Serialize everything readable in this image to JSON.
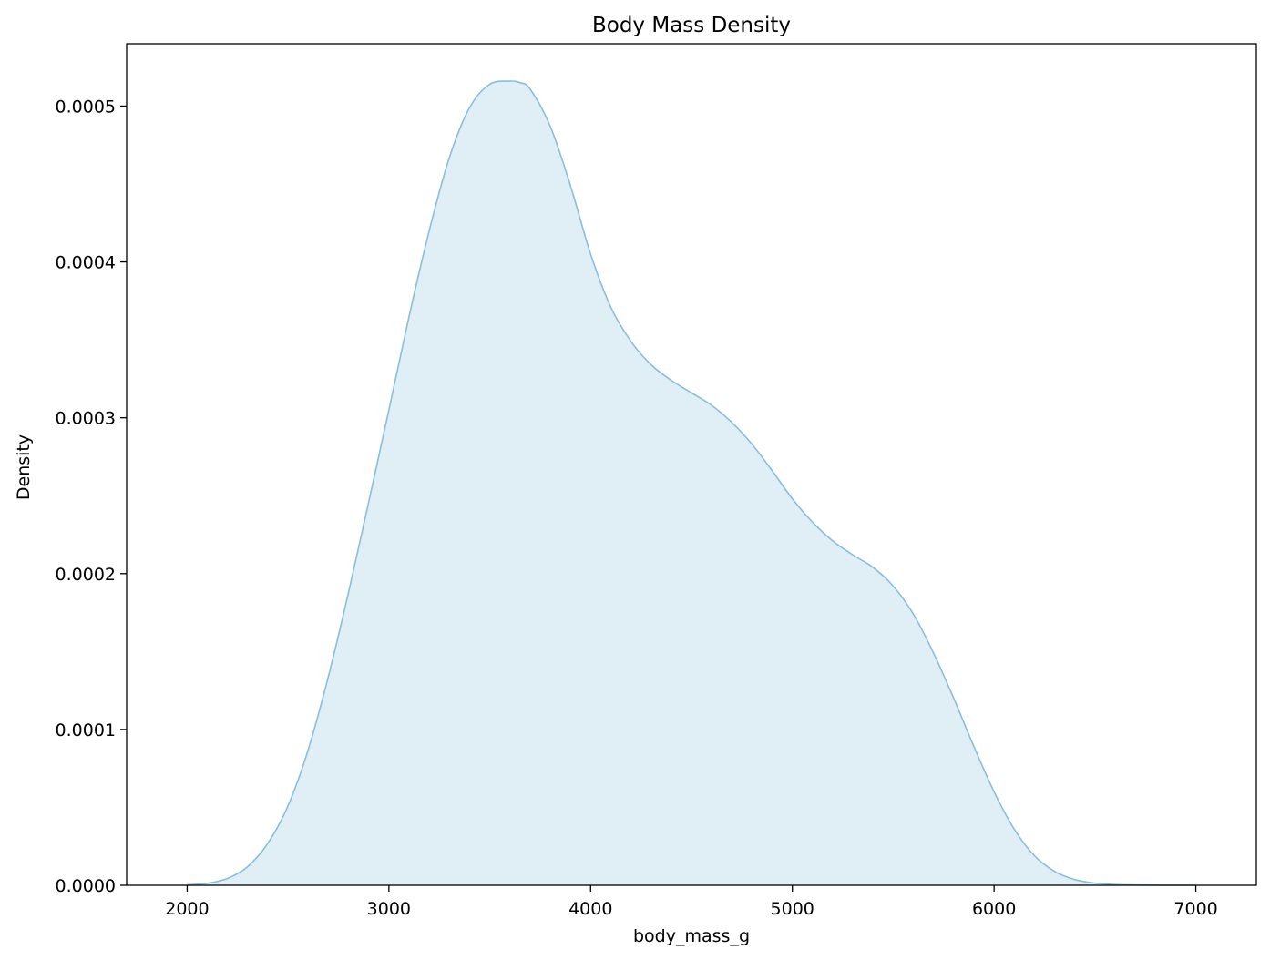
{
  "chart_data": {
    "type": "area",
    "title": "Body Mass Density",
    "xlabel": "body_mass_g",
    "ylabel": "Density",
    "xlim": [
      1700,
      7300
    ],
    "ylim": [
      0,
      0.00054
    ],
    "x_ticks": [
      2000,
      3000,
      4000,
      5000,
      6000,
      7000
    ],
    "x_tick_labels": [
      "2000",
      "3000",
      "4000",
      "5000",
      "6000",
      "7000"
    ],
    "y_ticks": [
      0,
      0.0001,
      0.0002,
      0.0003,
      0.0004,
      0.0005
    ],
    "y_tick_labels": [
      "0.0000",
      "0.0001",
      "0.0002",
      "0.0003",
      "0.0004",
      "0.0005"
    ],
    "grid": false,
    "colors": {
      "line": "#89bedc",
      "fill": "#e0eef6"
    },
    "series": [
      {
        "x": [
          2000,
          2100,
          2200,
          2300,
          2400,
          2500,
          2600,
          2700,
          2800,
          2900,
          3000,
          3100,
          3200,
          3300,
          3400,
          3500,
          3600,
          3650,
          3700,
          3800,
          3900,
          4000,
          4100,
          4200,
          4300,
          4400,
          4500,
          4600,
          4700,
          4800,
          4900,
          5000,
          5100,
          5200,
          5300,
          5400,
          5500,
          5600,
          5700,
          5800,
          5900,
          6000,
          6100,
          6200,
          6300,
          6400,
          6500,
          6600,
          6700,
          6800,
          6900,
          7000
        ],
        "y": [
          3e-07,
          1.3e-06,
          4.4e-06,
          1.2e-05,
          2.7e-05,
          5.1e-05,
          8.7e-05,
          0.000134,
          0.000188,
          0.000246,
          0.000305,
          0.000365,
          0.00042,
          0.000467,
          0.000499,
          0.000514,
          0.000516,
          0.000515,
          0.000511,
          0.000487,
          0.000449,
          0.000405,
          0.000371,
          0.000349,
          0.000334,
          0.000324,
          0.000316,
          0.000308,
          0.000297,
          0.000283,
          0.000266,
          0.000248,
          0.000233,
          0.000221,
          0.000212,
          0.000204,
          0.000192,
          0.000174,
          0.000149,
          0.00012,
          8.9e-05,
          6e-05,
          3.6e-05,
          1.9e-05,
          8.9e-06,
          3.7e-06,
          1.4e-06,
          5e-07,
          2e-07,
          6e-08,
          2e-08,
          1e-08
        ]
      }
    ]
  }
}
